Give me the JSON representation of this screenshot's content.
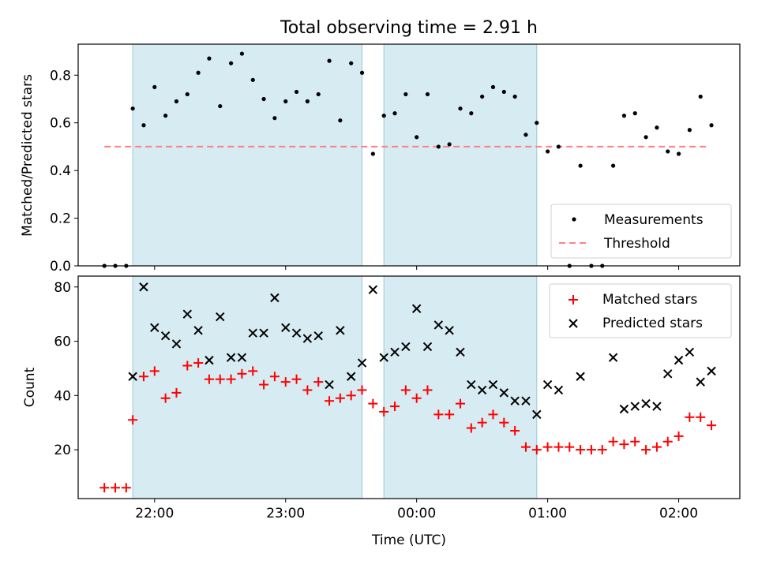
{
  "chart_data": [
    {
      "type": "scatter",
      "title": "Total observing time = 2.91 h",
      "ylabel": "Matched/Predicted stars",
      "xlabel": "",
      "ylim": [
        0,
        0.93
      ],
      "yticks": [
        "0.0",
        "0.2",
        "0.4",
        "0.6",
        "0.8"
      ],
      "ytick_values": [
        0,
        0.2,
        0.4,
        0.6,
        0.8
      ],
      "xlim": [
        "21:25",
        "02:28"
      ],
      "grid": false,
      "legend_position": "lower-right",
      "legend": [
        "Measurements",
        "Threshold"
      ],
      "shaded_intervals": [
        [
          "21:50",
          "23:35"
        ],
        [
          "23:45",
          "00:55"
        ]
      ],
      "threshold": {
        "value": 0.5,
        "x": [
          "21:37",
          "02:13"
        ],
        "color": "#ff8080"
      },
      "series": [
        {
          "name": "Measurements",
          "marker": "dot",
          "color": "#000000",
          "times": [
            "21:37",
            "21:42",
            "21:47",
            "21:50",
            "21:55",
            "22:00",
            "22:05",
            "22:10",
            "22:15",
            "22:20",
            "22:25",
            "22:30",
            "22:35",
            "22:40",
            "22:45",
            "22:50",
            "22:55",
            "23:00",
            "23:05",
            "23:10",
            "23:15",
            "23:20",
            "23:25",
            "23:30",
            "23:35",
            "23:40",
            "23:45",
            "23:50",
            "23:55",
            "24:00",
            "24:05",
            "24:10",
            "24:15",
            "24:20",
            "24:25",
            "24:30",
            "24:35",
            "24:40",
            "24:45",
            "24:50",
            "24:55",
            "25:00",
            "25:05",
            "25:10",
            "25:15",
            "25:20",
            "25:25",
            "25:30",
            "25:35",
            "25:40",
            "25:45",
            "25:50",
            "25:55",
            "26:00",
            "26:05",
            "26:10",
            "26:15"
          ],
          "values": [
            0,
            0,
            0,
            0.66,
            0.59,
            0.75,
            0.63,
            0.69,
            0.72,
            0.81,
            0.87,
            0.67,
            0.85,
            0.89,
            0.78,
            0.7,
            0.62,
            0.69,
            0.73,
            0.69,
            0.72,
            0.86,
            0.61,
            0.85,
            0.81,
            0.47,
            0.63,
            0.64,
            0.72,
            0.54,
            0.72,
            0.5,
            0.51,
            0.66,
            0.64,
            0.71,
            0.75,
            0.73,
            0.71,
            0.55,
            0.6,
            0.48,
            0.5,
            0,
            0.42,
            0,
            0,
            0.42,
            0.63,
            0.64,
            0.54,
            0.58,
            0.48,
            0.47,
            0.57,
            0.71,
            0.59
          ]
        }
      ]
    },
    {
      "type": "scatter",
      "title": "",
      "ylabel": "Count",
      "xlabel": "Time (UTC)",
      "ylim": [
        2,
        84
      ],
      "yticks": [
        "20",
        "40",
        "60",
        "80"
      ],
      "ytick_values": [
        20,
        40,
        60,
        80
      ],
      "xticks": [
        "22:00",
        "23:00",
        "00:00",
        "01:00",
        "02:00"
      ],
      "grid": false,
      "legend_position": "upper-right",
      "legend": [
        "Matched stars",
        "Predicted stars"
      ],
      "series": [
        {
          "name": "Matched stars",
          "marker": "plus",
          "color": "#ff0000",
          "times": [
            "21:37",
            "21:42",
            "21:47",
            "21:50",
            "21:55",
            "22:00",
            "22:05",
            "22:10",
            "22:15",
            "22:20",
            "22:25",
            "22:30",
            "22:35",
            "22:40",
            "22:45",
            "22:50",
            "22:55",
            "23:00",
            "23:05",
            "23:10",
            "23:15",
            "23:20",
            "23:25",
            "23:30",
            "23:35",
            "23:40",
            "23:45",
            "23:50",
            "23:55",
            "24:00",
            "24:05",
            "24:10",
            "24:15",
            "24:20",
            "24:25",
            "24:30",
            "24:35",
            "24:40",
            "24:45",
            "24:50",
            "24:55",
            "25:00",
            "25:05",
            "25:10",
            "25:15",
            "25:20",
            "25:25",
            "25:30",
            "25:35",
            "25:40",
            "25:45",
            "25:50",
            "25:55",
            "26:00",
            "26:05",
            "26:10",
            "26:15"
          ],
          "values": [
            6,
            6,
            6,
            31,
            47,
            49,
            39,
            41,
            51,
            52,
            46,
            46,
            46,
            48,
            49,
            44,
            47,
            45,
            46,
            42,
            45,
            38,
            39,
            40,
            42,
            37,
            34,
            36,
            42,
            39,
            42,
            33,
            33,
            37,
            28,
            30,
            33,
            30,
            27,
            21,
            20,
            21,
            21,
            21,
            20,
            20,
            20,
            23,
            22,
            23,
            20,
            21,
            23,
            25,
            32,
            32,
            29
          ]
        },
        {
          "name": "Predicted stars",
          "marker": "x",
          "color": "#000000",
          "times": [
            "21:50",
            "21:55",
            "22:00",
            "22:05",
            "22:10",
            "22:15",
            "22:20",
            "22:25",
            "22:30",
            "22:35",
            "22:40",
            "22:45",
            "22:50",
            "22:55",
            "23:00",
            "23:05",
            "23:10",
            "23:15",
            "23:20",
            "23:25",
            "23:30",
            "23:35",
            "23:40",
            "23:45",
            "23:50",
            "23:55",
            "24:00",
            "24:05",
            "24:10",
            "24:15",
            "24:20",
            "24:25",
            "24:30",
            "24:35",
            "24:40",
            "24:45",
            "24:50",
            "24:55",
            "25:00",
            "25:05",
            "25:15",
            "25:30",
            "25:35",
            "25:40",
            "25:45",
            "25:50",
            "25:55",
            "26:00",
            "26:05",
            "26:10",
            "26:15"
          ],
          "values": [
            47,
            80,
            65,
            62,
            59,
            70,
            64,
            53,
            69,
            54,
            54,
            63,
            63,
            76,
            65,
            63,
            61,
            62,
            44,
            64,
            47,
            52,
            79,
            54,
            56,
            58,
            72,
            58,
            66,
            64,
            56,
            44,
            42,
            44,
            41,
            38,
            38,
            33,
            44,
            42,
            47,
            54,
            35,
            36,
            37,
            36,
            48,
            53,
            56,
            45,
            49
          ]
        }
      ]
    }
  ]
}
